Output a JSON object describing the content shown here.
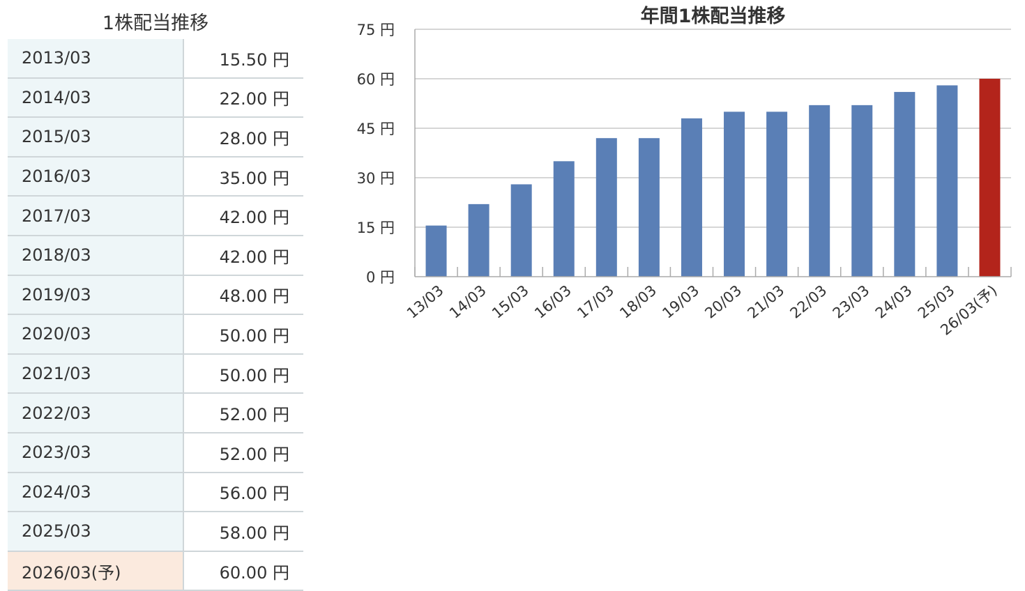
{
  "table": {
    "title": "1株配当推移",
    "unit": "円",
    "rows": [
      {
        "period": "2013/03",
        "amount": "15.50"
      },
      {
        "period": "2014/03",
        "amount": "22.00"
      },
      {
        "period": "2015/03",
        "amount": "28.00"
      },
      {
        "period": "2016/03",
        "amount": "35.00"
      },
      {
        "period": "2017/03",
        "amount": "42.00"
      },
      {
        "period": "2018/03",
        "amount": "42.00"
      },
      {
        "period": "2019/03",
        "amount": "48.00"
      },
      {
        "period": "2020/03",
        "amount": "50.00"
      },
      {
        "period": "2021/03",
        "amount": "50.00"
      },
      {
        "period": "2022/03",
        "amount": "52.00"
      },
      {
        "period": "2023/03",
        "amount": "52.00"
      },
      {
        "period": "2024/03",
        "amount": "56.00"
      },
      {
        "period": "2025/03",
        "amount": "58.00"
      },
      {
        "period": "2026/03(予)",
        "amount": "60.00",
        "forecast": true
      }
    ]
  },
  "chart_data": {
    "type": "bar",
    "title": "年間1株配当推移",
    "categories": [
      "13/03",
      "14/03",
      "15/03",
      "16/03",
      "17/03",
      "18/03",
      "19/03",
      "20/03",
      "21/03",
      "22/03",
      "23/03",
      "24/03",
      "25/03",
      "26/03(予)"
    ],
    "values": [
      15.5,
      22,
      28,
      35,
      42,
      42,
      48,
      50,
      50,
      52,
      52,
      56,
      58,
      60
    ],
    "ylim": [
      0,
      75
    ],
    "yticks": [
      0,
      15,
      30,
      45,
      60,
      75
    ],
    "ytick_unit": "円",
    "grid": true,
    "legend": "none",
    "colors": {
      "actual": "#5a7fb6",
      "forecast": "#b3241b",
      "grid": "#c8c8c8",
      "axis": "#aaaaaa"
    }
  }
}
